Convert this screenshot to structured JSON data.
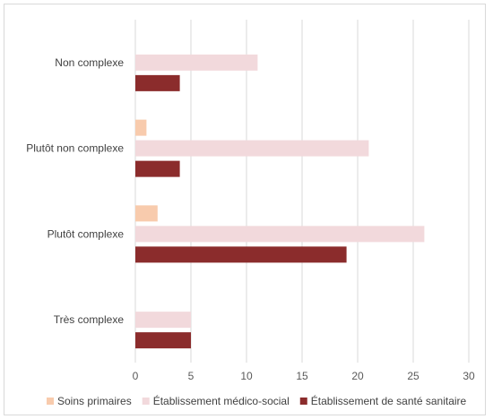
{
  "chart_data": {
    "type": "bar",
    "orientation": "horizontal",
    "categories": [
      "Non complexe",
      "Plutôt non complexe",
      "Plutôt complexe",
      "Très complexe"
    ],
    "series": [
      {
        "name": "Soins primaires",
        "color": "#f8cbad",
        "values": [
          0,
          1,
          2,
          0
        ]
      },
      {
        "name": "Établissement médico-social",
        "color": "#f2d9dc",
        "values": [
          11,
          21,
          26,
          5
        ]
      },
      {
        "name": "Établissement de santé sanitaire",
        "color": "#8b2c2c",
        "values": [
          4,
          4,
          19,
          5
        ]
      }
    ],
    "xlim": [
      0,
      30
    ],
    "xticks": [
      "0",
      "5",
      "10",
      "15",
      "20",
      "25",
      "30"
    ],
    "grid": true,
    "legend_position": "bottom"
  }
}
